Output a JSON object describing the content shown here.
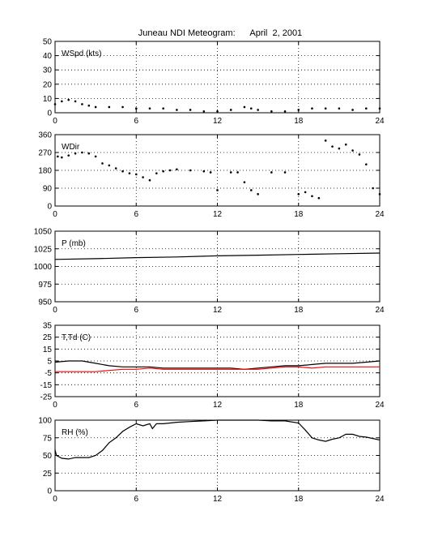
{
  "title": "Juneau NDI Meteogram:      April  2, 2001",
  "chart_data": [
    {
      "type": "scatter",
      "id": "wspd",
      "label": "WSpd (kts)",
      "xlim": [
        0,
        24
      ],
      "ylim": [
        0,
        50
      ],
      "xticks": [
        0,
        6,
        12,
        18,
        24
      ],
      "yticks": [
        0,
        10,
        20,
        30,
        40,
        50
      ],
      "grid": true,
      "series": [
        {
          "color": "#000000",
          "style": "dots",
          "x": [
            0,
            0.5,
            1,
            1.5,
            2,
            2.5,
            3,
            4,
            5,
            6,
            7,
            8,
            9,
            10,
            11,
            12,
            13,
            14,
            14.5,
            15,
            16,
            17,
            18,
            19,
            20,
            21,
            22,
            23,
            24
          ],
          "y": [
            6,
            8,
            9,
            8,
            6,
            5,
            4,
            4,
            4,
            3,
            3,
            3,
            2,
            2,
            1,
            1,
            2,
            4,
            3,
            2,
            1,
            1,
            2,
            3,
            3,
            3,
            2,
            3,
            3
          ]
        }
      ]
    },
    {
      "type": "scatter",
      "id": "wdir",
      "label": "WDir",
      "xlim": [
        0,
        24
      ],
      "ylim": [
        0,
        360
      ],
      "xticks": [
        0,
        6,
        12,
        18,
        24
      ],
      "yticks": [
        0,
        90,
        180,
        270,
        360
      ],
      "grid": true,
      "series": [
        {
          "color": "#000000",
          "style": "dots",
          "x": [
            0.2,
            0.5,
            1,
            1.5,
            2,
            2.5,
            3,
            3.5,
            4,
            4.5,
            5,
            5.5,
            6,
            6.5,
            7,
            7.5,
            8,
            8.5,
            9,
            10,
            11,
            11.5,
            12,
            13,
            13.5,
            14,
            14.5,
            15,
            16,
            17,
            18,
            18.5,
            19,
            19.5,
            20,
            20.5,
            21,
            21.5,
            22,
            22.5,
            23,
            23.5,
            24
          ],
          "y": [
            250,
            245,
            255,
            265,
            270,
            265,
            250,
            215,
            205,
            190,
            175,
            165,
            160,
            145,
            130,
            165,
            175,
            180,
            185,
            180,
            175,
            170,
            80,
            170,
            170,
            120,
            80,
            60,
            170,
            170,
            60,
            70,
            50,
            40,
            330,
            300,
            290,
            310,
            280,
            260,
            210,
            90,
            60
          ]
        }
      ]
    },
    {
      "type": "line",
      "id": "pressure",
      "label": "P (mb)",
      "xlim": [
        0,
        24
      ],
      "ylim": [
        950,
        1050
      ],
      "xticks": [
        0,
        6,
        12,
        18,
        24
      ],
      "yticks": [
        950,
        975,
        1000,
        1025,
        1050
      ],
      "grid": true,
      "series": [
        {
          "color": "#000000",
          "style": "line",
          "x": [
            0,
            3,
            6,
            9,
            12,
            15,
            18,
            21,
            24
          ],
          "y": [
            1010,
            1011,
            1012.5,
            1013.5,
            1015,
            1016,
            1017,
            1018,
            1019
          ]
        }
      ]
    },
    {
      "type": "line",
      "id": "temp",
      "label": "T,Td (C)",
      "xlim": [
        0,
        24
      ],
      "ylim": [
        -25,
        35
      ],
      "xticks": [
        0,
        6,
        12,
        18,
        24
      ],
      "yticks": [
        -25,
        -15,
        -5,
        5,
        15,
        25,
        35
      ],
      "grid": true,
      "series": [
        {
          "color": "#000000",
          "style": "line",
          "x": [
            0,
            1,
            2,
            3,
            4,
            5,
            6,
            7,
            8,
            9,
            10,
            11,
            12,
            13,
            14,
            15,
            16,
            17,
            18,
            19,
            20,
            21,
            22,
            23,
            24
          ],
          "y": [
            4,
            5,
            5,
            3,
            1,
            0,
            0,
            0,
            -1,
            -1,
            -1,
            -1,
            -1,
            -1,
            -2,
            -1,
            0,
            1,
            1,
            2,
            3,
            3,
            3,
            4,
            5
          ]
        },
        {
          "color": "#ff0000",
          "style": "line",
          "x": [
            0,
            1,
            2,
            3,
            4,
            5,
            6,
            7,
            8,
            9,
            10,
            11,
            12,
            13,
            14,
            15,
            16,
            17,
            18,
            19,
            20,
            21,
            22,
            23,
            24
          ],
          "y": [
            -4,
            -4,
            -4,
            -4,
            -3,
            -2,
            -2,
            -1,
            -2,
            -2,
            -2,
            -2,
            -2,
            -2,
            -2,
            -2,
            -1,
            0,
            0,
            -1,
            0,
            0,
            0,
            0,
            0
          ]
        }
      ]
    },
    {
      "type": "line",
      "id": "rh",
      "label": "RH (%)",
      "xlim": [
        0,
        24
      ],
      "ylim": [
        0,
        100
      ],
      "xticks": [
        0,
        6,
        12,
        18,
        24
      ],
      "yticks": [
        0,
        25,
        50,
        75,
        100
      ],
      "grid": true,
      "series": [
        {
          "color": "#000000",
          "style": "line",
          "x": [
            0,
            0.1,
            0.5,
            1,
            1.5,
            2,
            2.5,
            3,
            3.5,
            4,
            4.5,
            5,
            5.5,
            6,
            6.5,
            7,
            7.2,
            7.5,
            8,
            9,
            10,
            11,
            12,
            13,
            14,
            15,
            16,
            17,
            18,
            18.5,
            19,
            19.5,
            20,
            20.5,
            21,
            21.5,
            22,
            22.5,
            23,
            23.5,
            24
          ],
          "y": [
            58,
            50,
            46,
            45,
            47,
            47,
            47,
            50,
            57,
            68,
            75,
            84,
            90,
            95,
            92,
            95,
            88,
            95,
            95,
            97,
            98,
            99,
            100,
            100,
            100,
            100,
            99,
            99,
            96,
            86,
            75,
            72,
            70,
            73,
            75,
            80,
            80,
            77,
            76,
            74,
            72
          ]
        }
      ]
    }
  ]
}
